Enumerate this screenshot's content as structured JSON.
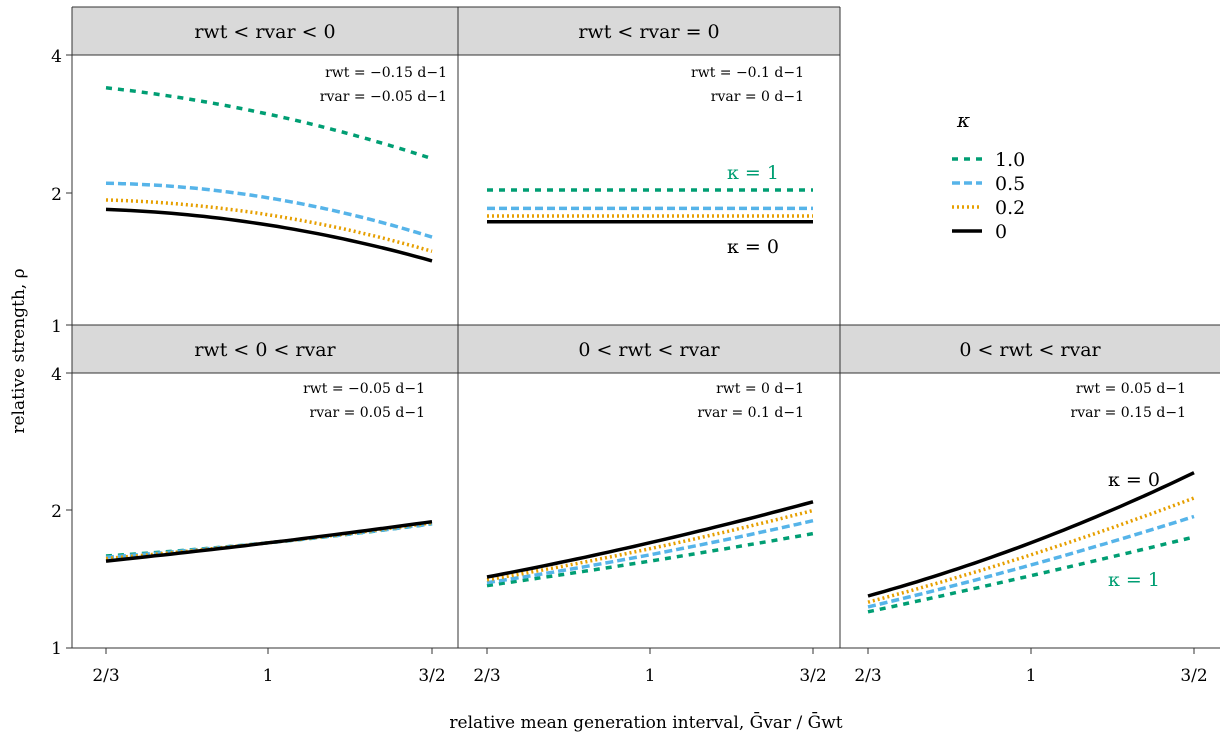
{
  "colors": {
    "kappa_1_0": "#009E73",
    "kappa_0_5": "#56B4E9",
    "kappa_0_2": "#E69F00",
    "kappa_0": "#000000",
    "strip": "#d9d9d9"
  },
  "legend": {
    "title": "κ",
    "entries": [
      "1.0",
      "0.5",
      "0.2",
      "0"
    ],
    "placement": "right"
  },
  "x_axis": {
    "title": "relative mean generation interval, Ḡvar / Ḡwt",
    "ticks": [
      "2/3",
      "1",
      "3/2"
    ]
  },
  "y_axis": {
    "title": "relative strength, ρ",
    "ticks": [
      "1",
      "2",
      "4"
    ]
  },
  "chart_data": [
    {
      "type": "line",
      "panel": "rwt < rvar < 0",
      "params": [
        "rwt = −0.15 d−1",
        "rvar = −0.05 d−1"
      ],
      "x": [
        0.6667,
        1.0,
        1.5
      ],
      "xscale": "log",
      "yscale": "log",
      "ylim": [
        1,
        4
      ],
      "annotations": [],
      "series": [
        {
          "name": "1.0",
          "values": [
            3.38,
            2.95,
            2.35
          ]
        },
        {
          "name": "0.5",
          "values": [
            2.07,
            1.92,
            1.57
          ]
        },
        {
          "name": "0.2",
          "values": [
            1.9,
            1.76,
            1.46
          ]
        },
        {
          "name": "0",
          "values": [
            1.81,
            1.67,
            1.39
          ]
        }
      ]
    },
    {
      "type": "line",
      "panel": "rwt < rvar = 0",
      "params": [
        "rwt = −0.1 d−1",
        "rvar = 0 d−1"
      ],
      "x": [
        0.6667,
        1.0,
        1.5
      ],
      "xscale": "log",
      "yscale": "log",
      "ylim": [
        1,
        4
      ],
      "annotations": [
        "κ = 1",
        "κ = 0"
      ],
      "series": [
        {
          "name": "1.0",
          "values": [
            2.0,
            2.0,
            2.0
          ]
        },
        {
          "name": "0.5",
          "values": [
            1.82,
            1.82,
            1.82
          ]
        },
        {
          "name": "0.2",
          "values": [
            1.75,
            1.75,
            1.75
          ]
        },
        {
          "name": "0",
          "values": [
            1.7,
            1.7,
            1.7
          ]
        }
      ]
    },
    {
      "type": "line",
      "panel": "rwt < 0 < rvar",
      "params": [
        "rwt = −0.05 d−1",
        "rvar = 0.05 d−1"
      ],
      "x": [
        0.6667,
        1.0,
        1.5
      ],
      "xscale": "log",
      "yscale": "log",
      "ylim": [
        1,
        4
      ],
      "annotations": [],
      "series": [
        {
          "name": "1.0",
          "values": [
            1.59,
            1.7,
            1.87
          ]
        },
        {
          "name": "0.5",
          "values": [
            1.58,
            1.7,
            1.87
          ]
        },
        {
          "name": "0.2",
          "values": [
            1.57,
            1.7,
            1.88
          ]
        },
        {
          "name": "0",
          "values": [
            1.55,
            1.7,
            1.89
          ]
        }
      ]
    },
    {
      "type": "line",
      "panel": "0 < rwt < rvar",
      "params": [
        "rwt = 0 d−1",
        "rvar = 0.1 d−1"
      ],
      "x": [
        0.6667,
        1.0,
        1.5
      ],
      "xscale": "log",
      "yscale": "log",
      "ylim": [
        1,
        4
      ],
      "annotations": [],
      "series": [
        {
          "name": "1.0",
          "values": [
            1.37,
            1.55,
            1.78
          ]
        },
        {
          "name": "0.5",
          "values": [
            1.39,
            1.6,
            1.9
          ]
        },
        {
          "name": "0.2",
          "values": [
            1.41,
            1.65,
            2.0
          ]
        },
        {
          "name": "0",
          "values": [
            1.43,
            1.7,
            2.09
          ]
        }
      ]
    },
    {
      "type": "line",
      "panel": "0 < rwt < rvar",
      "params": [
        "rwt = 0.05 d−1",
        "rvar = 0.15 d−1"
      ],
      "x": [
        0.6667,
        1.0,
        1.5
      ],
      "xscale": "log",
      "yscale": "log",
      "ylim": [
        1,
        4
      ],
      "annotations": [
        "κ = 0",
        "κ = 1"
      ],
      "series": [
        {
          "name": "1.0",
          "values": [
            1.2,
            1.44,
            1.75
          ]
        },
        {
          "name": "0.5",
          "values": [
            1.23,
            1.52,
            1.94
          ]
        },
        {
          "name": "0.2",
          "values": [
            1.26,
            1.6,
            2.13
          ]
        },
        {
          "name": "0",
          "values": [
            1.3,
            1.7,
            2.42
          ]
        }
      ]
    }
  ]
}
